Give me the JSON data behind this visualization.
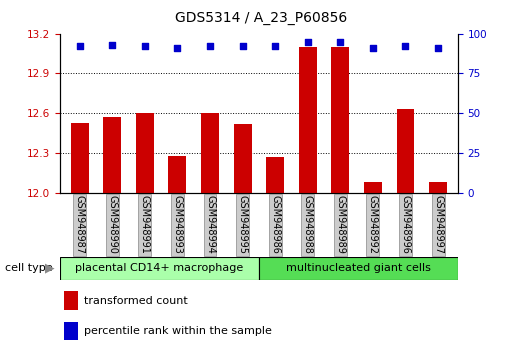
{
  "title": "GDS5314 / A_23_P60856",
  "samples": [
    "GSM948987",
    "GSM948990",
    "GSM948991",
    "GSM948993",
    "GSM948994",
    "GSM948995",
    "GSM948986",
    "GSM948988",
    "GSM948989",
    "GSM948992",
    "GSM948996",
    "GSM948997"
  ],
  "transformed_count": [
    12.53,
    12.57,
    12.6,
    12.28,
    12.6,
    12.52,
    12.27,
    13.1,
    13.1,
    12.08,
    12.63,
    12.08
  ],
  "percentile_rank": [
    92,
    93,
    92,
    91,
    92,
    92,
    92,
    95,
    95,
    91,
    92,
    91
  ],
  "group1_label": "placental CD14+ macrophage",
  "group2_label": "multinucleated giant cells",
  "group1_count": 6,
  "group2_count": 6,
  "ylim_left": [
    12,
    13.2
  ],
  "ylim_right": [
    0,
    100
  ],
  "yticks_left": [
    12,
    12.3,
    12.6,
    12.9,
    13.2
  ],
  "yticks_right": [
    0,
    25,
    50,
    75,
    100
  ],
  "bar_color": "#cc0000",
  "dot_color": "#0000cc",
  "group1_bg": "#aaffaa",
  "group2_bg": "#55dd55",
  "tick_label_bg": "#cccccc",
  "legend_bar_label": "transformed count",
  "legend_dot_label": "percentile rank within the sample",
  "cell_type_label": "cell type",
  "grid_lines": [
    12.3,
    12.6,
    12.9
  ],
  "title_fontsize": 10,
  "tick_fontsize": 7.5,
  "label_fontsize": 7,
  "group_fontsize": 8
}
